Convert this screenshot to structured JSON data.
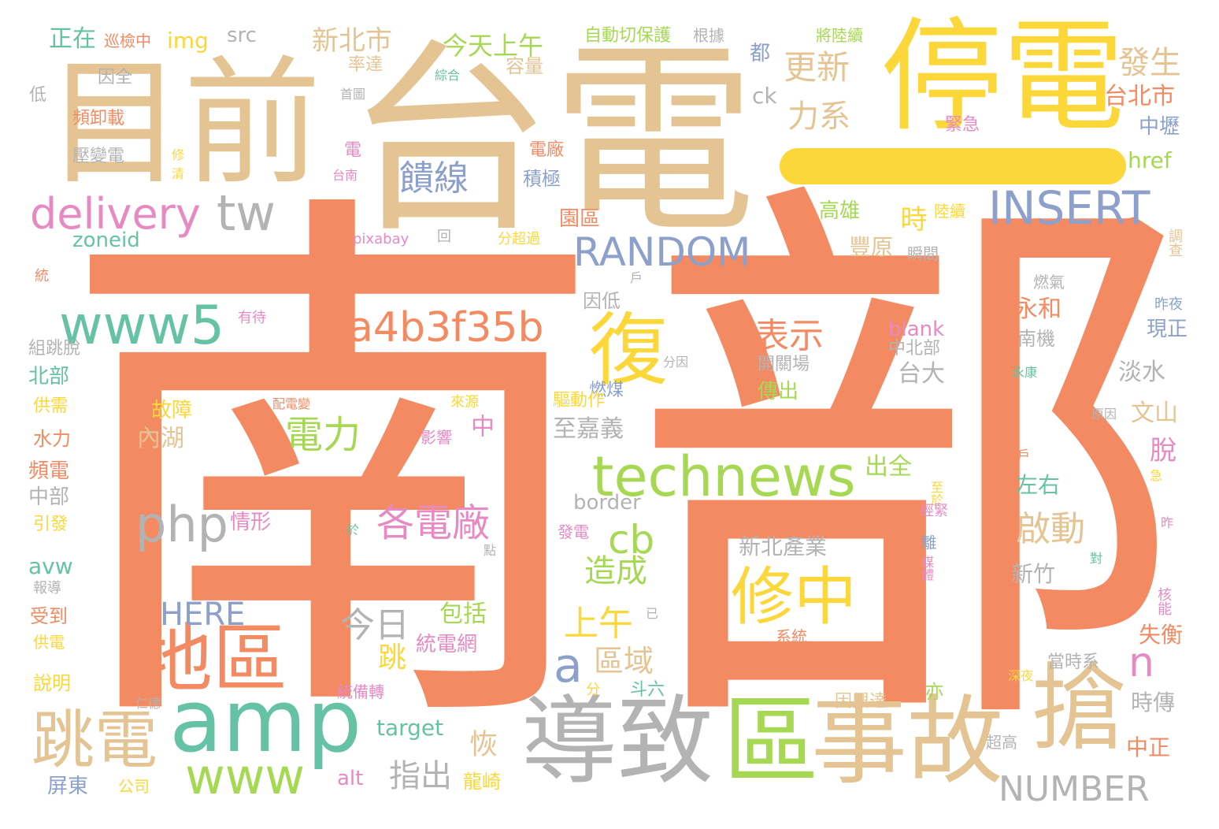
{
  "palette": {
    "salmon": "#f48a62",
    "tan": "#e5c493",
    "yellow": "#fcd73a",
    "teal": "#66c2a5",
    "green": "#a6d854",
    "grey": "#b3b3b3",
    "pink": "#e78ac3",
    "blue": "#8da0cb"
  },
  "words": {
    "nanbu": [
      "南",
      "部"
    ],
    "taidian": "台電",
    "tingdian": "停電",
    "muqian": "目前",
    "daozhi": "導致",
    "qu": "區",
    "shigu": "事故",
    "qiang": "搶",
    "amp": "amp",
    "tiaodian": "跳電",
    "diqu": "地區",
    "www": "www",
    "www5": "www5",
    "technews": "technews",
    "xiuzhong": "修中",
    "fu": "復",
    "insert": "INSERT",
    "random": "RANDOM",
    "a4b": "a4b3f35b",
    "delivery": "delivery",
    "tw": "tw",
    "php": "php",
    "kuixian": "饋線",
    "dianli": "電力",
    "gedianchang": "各電廠",
    "number": "NUMBER",
    "cb": "cb",
    "zaocheng": "造成",
    "shangwu": "上午",
    "biaoshi": "表示",
    "qidong": "啟動",
    "a": "a",
    "n": "n",
    "here": "HERE",
    "jinri": "今日",
    "quyu": "區域",
    "zhichu": "指出",
    "gengxin": "更新",
    "lixi": "力系",
    "fasheng": "發生",
    "taibeishi": "台北市",
    "xinbeishi": "新北市",
    "jintianshangwu": "今天上午",
    "zhengzai": "正在",
    "xunjian": "巡檢中",
    "img": "img",
    "src": "src",
    "zidongqie": "自動切保護",
    "genju": "根據",
    "jiangluxu": "將陸續",
    "dou": "都",
    "shuaida": "率達",
    "zonghe": "綜合",
    "rongliang": "容量",
    "ck": "ck",
    "yinquan": "因全",
    "di": "低",
    "shouye": "首圖",
    "pinxiezai": "頻卸載",
    "yabiandian": "壓變電",
    "xiu": "修",
    "qing": "清",
    "jinji": "緊急",
    "zhongli": "中壢",
    "href": "href",
    "dian": "電",
    "dianchang": "電廠",
    "jiji": "積極",
    "tainan": "台南",
    "gaoxiong": "高雄",
    "shi": "時",
    "luxu": "陸續",
    "yuanqu": "園區",
    "zoneid": "zoneid",
    "pixabay": "pixabay",
    "hui": "回",
    "fenchaoguo": "分超過",
    "fengyuan": "豐原",
    "shunjian": "瞬間",
    "diaocha": "調查",
    "tong": "統",
    "hu": "戶",
    "yindi": "因低",
    "youdai": "有待",
    "ranqi": "燃氣",
    "zuoye": "昨夜",
    "yonghe": "永和",
    "nanji": "南機",
    "xianzheng": "現正",
    "blank": "blank",
    "zhongbeibu": "中北部",
    "zutiaotuo": "組跳脫",
    "fenyin": "分因",
    "kaiguanchang": "開關場",
    "taida": "台大",
    "danshui": "淡水",
    "beibu": "北部",
    "yongkang": "永康",
    "chuanchu": "傳出",
    "ranmei": "燃煤",
    "gongxu": "供需",
    "peidian": "配電變",
    "laiyuan": "來源",
    "gongzhang": "故障",
    "qudongzuo": "驅動作",
    "yuanyin": "原因",
    "wenshan": "文山",
    "neihu": "內湖",
    "shuili": "水力",
    "yingxiang": "影響",
    "zhong": "中",
    "zhijiayi": "至嘉義",
    "tuo": "脫",
    "pindian": "頻電",
    "chuquan": "出全",
    "qianhu": "千戶",
    "zuoyou": "左右",
    "zhongbu": "中部",
    "border": "border",
    "zhiyu": "至於",
    "ji": "急",
    "qingxing": "情形",
    "yinfa": "引發",
    "fadian": "發電",
    "jinjin": "經緊",
    "zuo": "昨",
    "yu": "於",
    "xinbeichanye": "新北產業",
    "li": "離",
    "meiti": "媒體",
    "dui": "對",
    "dian2": "點",
    "avw": "avw",
    "xinzhu": "新竹",
    "baodao": "報導",
    "hefeng": "核能",
    "shoudao": "受到",
    "yi": "已",
    "xitong": "系統",
    "shiheng": "失衡",
    "baokuo": "包括",
    "tongdianwang": "統電網",
    "gongdian": "供電",
    "dangshixi": "當時系",
    "tiao": "跳",
    "shuoming": "說明",
    "tongbeizhuan": "統備轉",
    "fen": "分",
    "douliu": "斗六",
    "shenye": "深夜",
    "renDe": "仁德",
    "diansuo": "電所",
    "yinxingda": "因興達",
    "yi2": "亦",
    "shichuan": "時傳",
    "target": "target",
    "chaogao": "超高",
    "hui2": "恢",
    "zhongzheng": "中正",
    "pingdong": "屏東",
    "gongsi": "公司",
    "alt": "alt",
    "longqi": "龍崎"
  }
}
